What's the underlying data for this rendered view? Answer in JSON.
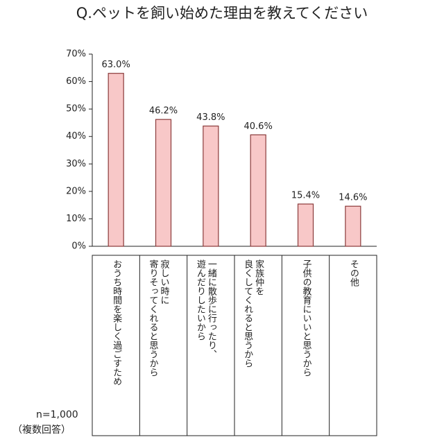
{
  "chart_data": {
    "type": "bar",
    "title": "Q.ペットを飼い始めた理由を教えてください",
    "categories": [
      "おうち時間を楽しく過ごすため",
      "寂しい時に\n寄りそってくれると思うから",
      "一緒に散歩に行ったり、\n遊んだりしたいから",
      "家族仲を\n良くしてくれると思うから",
      "子供の教育にいいと思うから",
      "その他"
    ],
    "values": [
      63.0,
      46.2,
      43.8,
      40.6,
      15.4,
      14.6
    ],
    "value_labels": [
      "63.0%",
      "46.2%",
      "43.8%",
      "40.6%",
      "15.4%",
      "14.6%"
    ],
    "color": "#f8c8c8",
    "edge_color": "#8a3a3a",
    "ylim": [
      0,
      70
    ],
    "yticks": [
      {
        "value": 0,
        "label": "0%"
      },
      {
        "value": 10,
        "label": "10%"
      },
      {
        "value": 20,
        "label": "20%"
      },
      {
        "value": 30,
        "label": "30%"
      },
      {
        "value": 40,
        "label": "40%"
      },
      {
        "value": 50,
        "label": "50%"
      },
      {
        "value": 60,
        "label": "60%"
      },
      {
        "value": 70,
        "label": "70%"
      }
    ],
    "grid": false,
    "sample_note": "n=1,000",
    "answer_note": "（複数回答）"
  }
}
